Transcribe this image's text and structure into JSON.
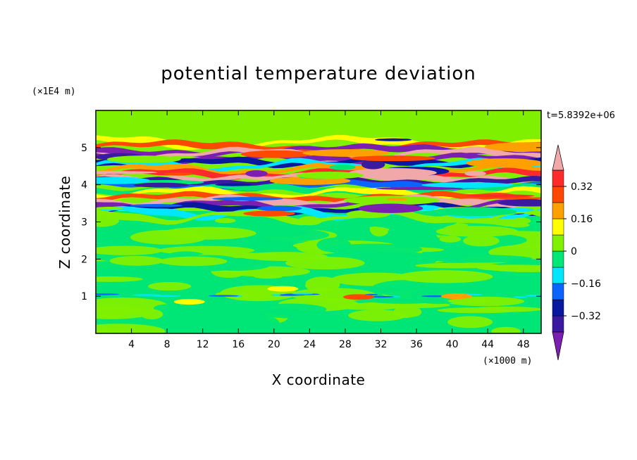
{
  "chart_data": {
    "type": "heatmap",
    "title": "potential temperature deviation",
    "xlabel": "X coordinate",
    "ylabel": "Z coordinate",
    "x_unit": "(×1000 m)",
    "y_unit": "(×1E4 m)",
    "time_label": "t=5.8392e+06",
    "xlim": [
      0,
      50
    ],
    "ylim": [
      0,
      6
    ],
    "xticks": [
      4,
      8,
      12,
      16,
      20,
      24,
      28,
      32,
      36,
      40,
      44,
      48
    ],
    "yticks": [
      1,
      2,
      3,
      4,
      5
    ],
    "xtick_labels": [
      "4",
      "8",
      "12",
      "16",
      "20",
      "24",
      "28",
      "32",
      "36",
      "40",
      "44",
      "48"
    ],
    "ytick_labels": [
      "1",
      "2",
      "3",
      "4",
      "5"
    ],
    "colorbar": {
      "levels": [
        -0.4,
        -0.32,
        -0.24,
        -0.16,
        -0.08,
        0,
        0.08,
        0.16,
        0.24,
        0.32,
        0.4
      ],
      "tick_values": [
        0.32,
        0.16,
        0,
        -0.16,
        -0.32
      ],
      "tick_labels": [
        "0.32",
        "0.16",
        "0",
        "−0.16",
        "−0.32"
      ],
      "colors": [
        "#7a1fb0",
        "#3a1aa0",
        "#0a18a0",
        "#0a64ff",
        "#00e6ff",
        "#00e676",
        "#7ff000",
        "#ffff00",
        "#ffa000",
        "#ff4800",
        "#ff2a2a",
        "#f0a8a8"
      ],
      "extend": "both"
    },
    "legend": "colorbar-right",
    "grid": false
  }
}
